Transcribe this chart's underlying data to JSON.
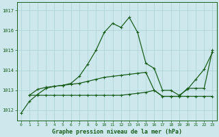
{
  "title": "Graphe pression niveau de la mer (hPa)",
  "xlabel_hours": [
    0,
    1,
    2,
    3,
    4,
    5,
    6,
    7,
    8,
    9,
    10,
    11,
    12,
    13,
    14,
    15,
    16,
    17,
    18,
    19,
    20,
    21,
    22,
    23
  ],
  "ylim": [
    1011.5,
    1017.4
  ],
  "xlim": [
    -0.5,
    23.5
  ],
  "yticks": [
    1012,
    1013,
    1014,
    1015,
    1016,
    1017
  ],
  "bg_color": "#cce8ec",
  "grid_color": "#b0d4d8",
  "line_color": "#1a5c1a",
  "line1_x": [
    0,
    1,
    2,
    3,
    4,
    5,
    6,
    7,
    8,
    9,
    10,
    11,
    12,
    13,
    14,
    15,
    16,
    17,
    18,
    19,
    20,
    21,
    22,
    23
  ],
  "line1_y": [
    1011.85,
    1012.45,
    1012.8,
    1013.1,
    1013.2,
    1013.25,
    1013.35,
    1013.7,
    1014.3,
    1015.0,
    1015.9,
    1016.35,
    1016.15,
    1016.65,
    1015.9,
    1014.35,
    1014.1,
    1013.0,
    1013.0,
    1012.75,
    1013.05,
    1013.55,
    1014.05,
    1014.9
  ],
  "line2_x": [
    1,
    2,
    3,
    4,
    5,
    6,
    7,
    8,
    9,
    10,
    11,
    12,
    13,
    14,
    15,
    16,
    17,
    18,
    19,
    20,
    21,
    22,
    23
  ],
  "line2_y": [
    1012.75,
    1012.75,
    1012.75,
    1012.75,
    1012.75,
    1012.75,
    1012.75,
    1012.75,
    1012.75,
    1012.75,
    1012.75,
    1012.75,
    1012.8,
    1012.85,
    1012.9,
    1013.0,
    1012.7,
    1012.7,
    1012.7,
    1012.7,
    1012.7,
    1012.7,
    1012.7
  ],
  "line3_x": [
    1,
    2,
    3,
    4,
    5,
    6,
    7,
    8,
    9,
    10,
    11,
    12,
    13,
    14,
    15,
    16,
    17,
    18,
    19,
    20,
    21,
    22,
    23
  ],
  "line3_y": [
    1012.75,
    1013.05,
    1013.15,
    1013.2,
    1013.25,
    1013.3,
    1013.35,
    1013.45,
    1013.55,
    1013.65,
    1013.7,
    1013.75,
    1013.8,
    1013.85,
    1013.9,
    1013.0,
    1012.7,
    1012.7,
    1012.7,
    1013.1,
    1013.1,
    1013.1,
    1015.0
  ]
}
